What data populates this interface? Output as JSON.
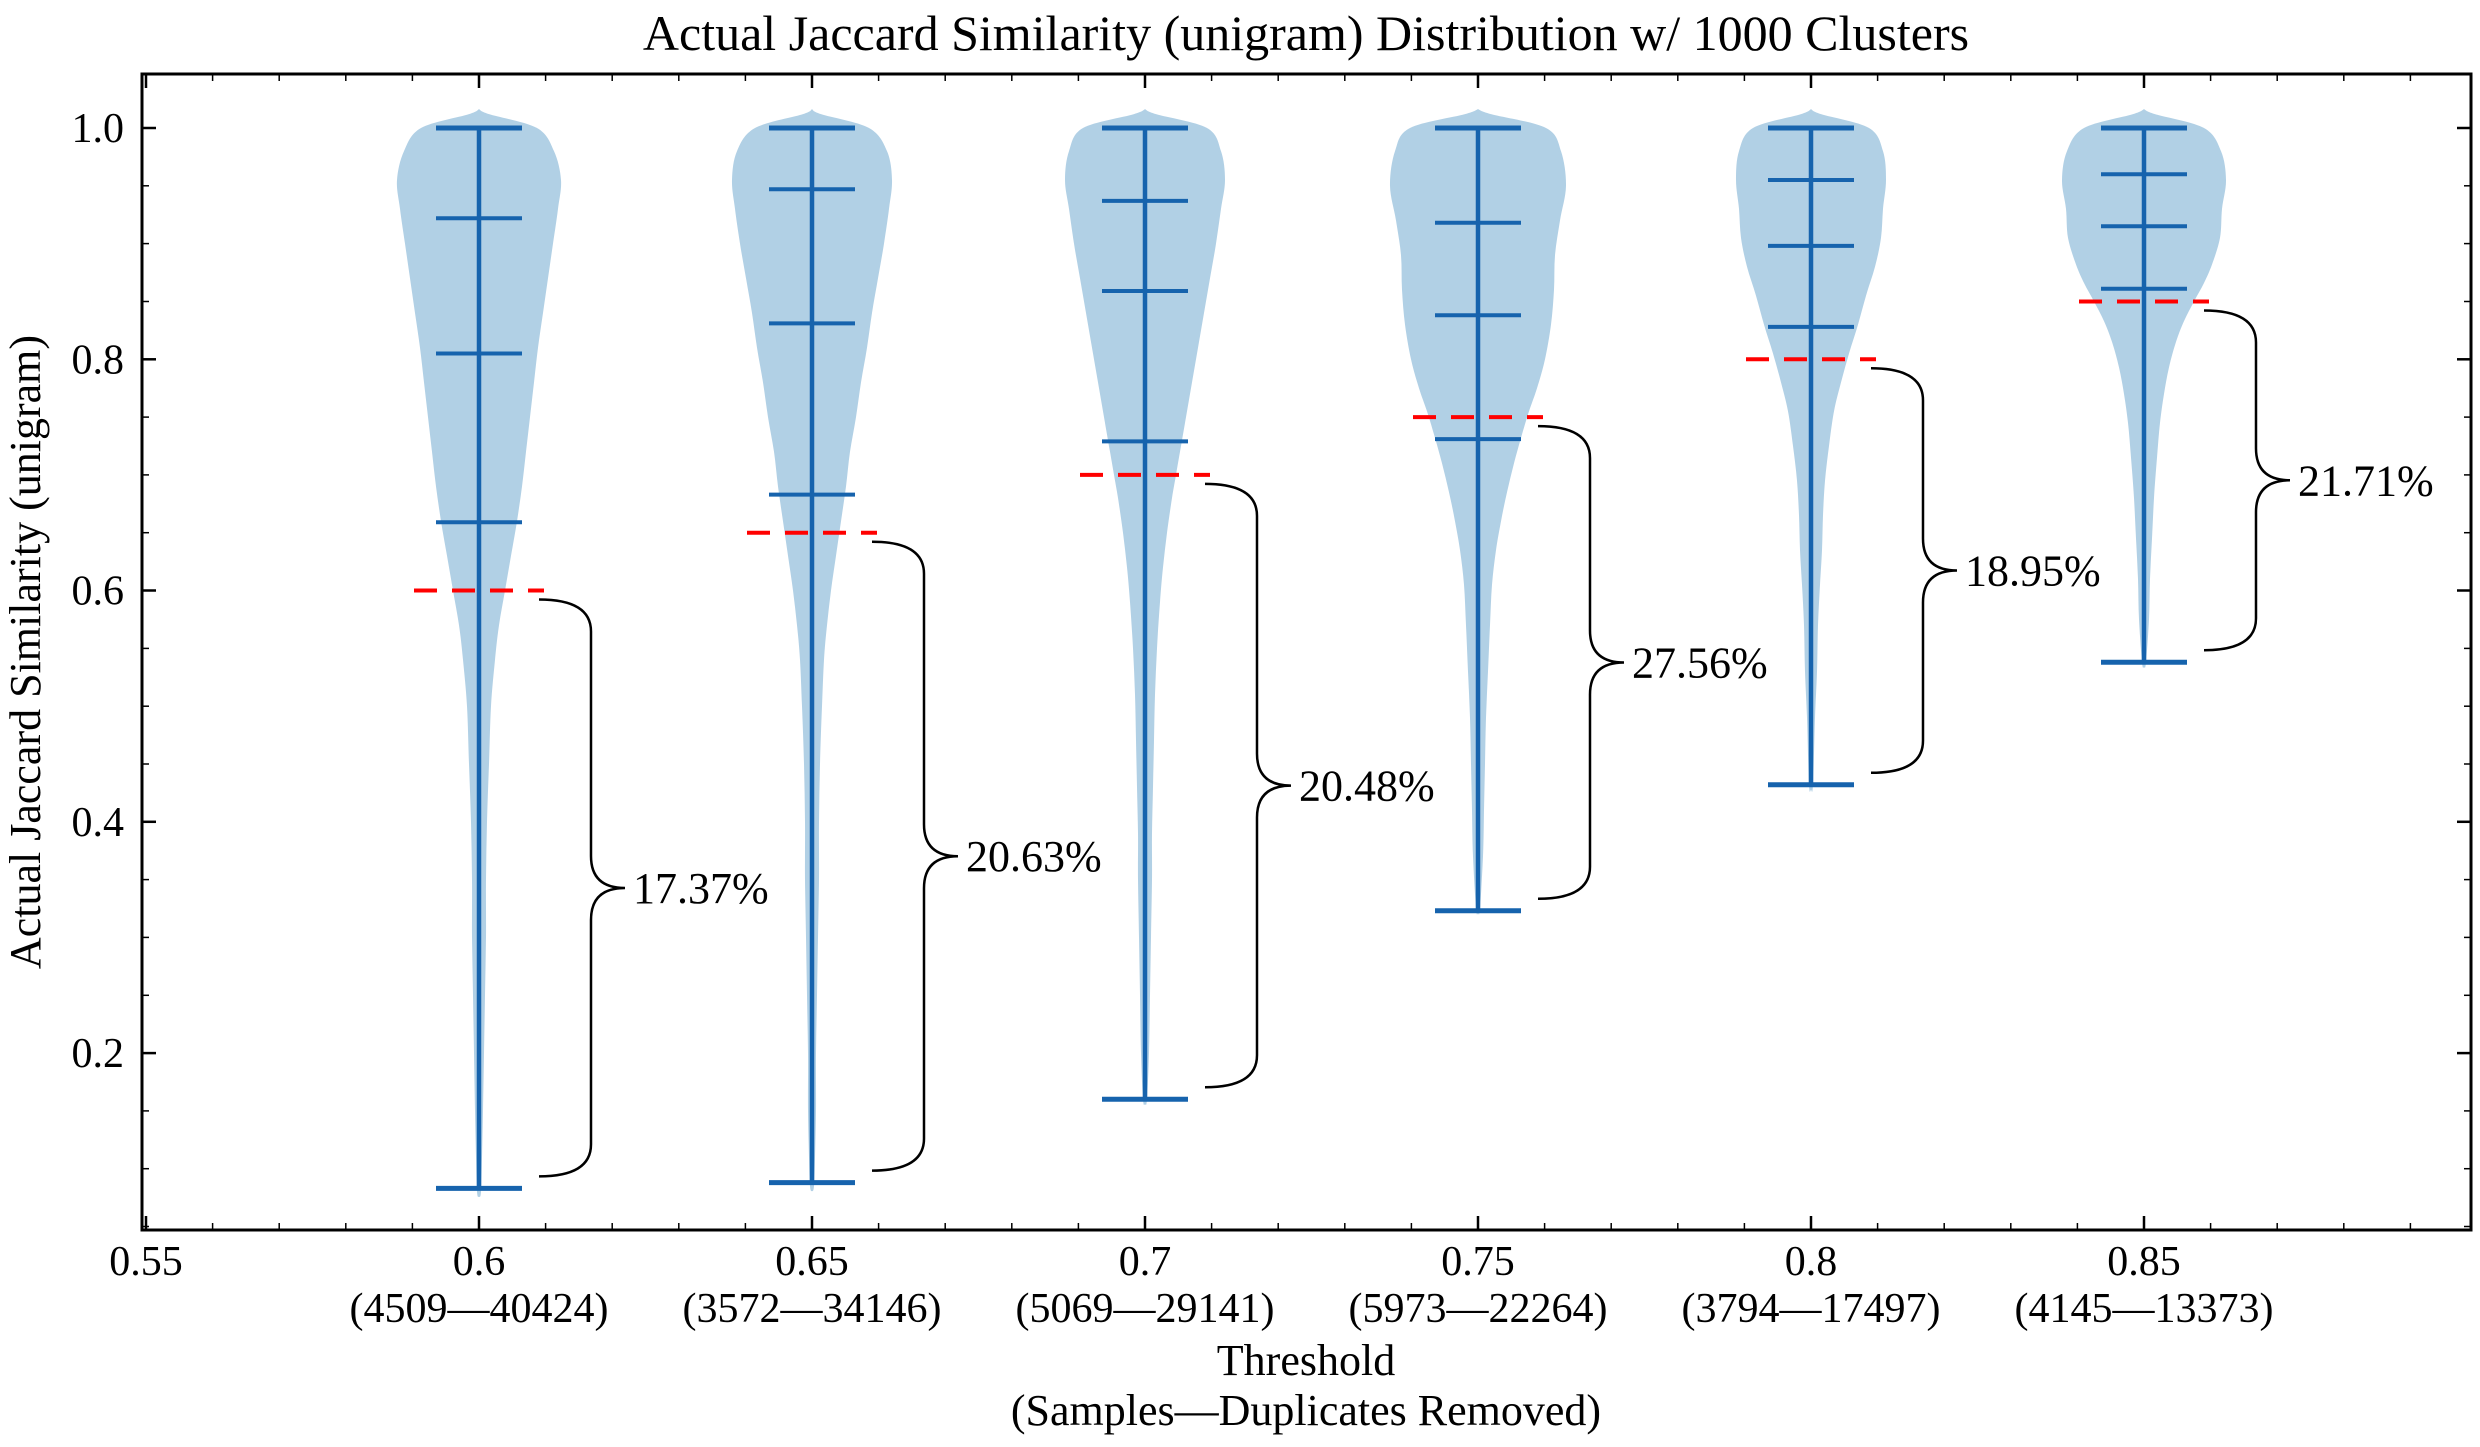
{
  "title": "Actual Jaccard Similarity (unigram) Distribution w/ 1000 Clusters",
  "chart_data": {
    "type": "violin",
    "title": "Actual Jaccard Similarity (unigram) Distribution w/ 1000 Clusters",
    "ylabel": "Actual Jaccard Similarity (unigram)",
    "xlabel_line1": "Threshold",
    "xlabel_line2": "(Samples—Duplicates Removed)",
    "xlim": [
      0.5494,
      0.8991
    ],
    "ylim": [
      0.047,
      1.0467
    ],
    "yticks": [
      0.2,
      0.4,
      0.6,
      0.8,
      1.0
    ],
    "ytick_labels": [
      "0.2",
      "0.4",
      "0.6",
      "0.8",
      "1.0"
    ],
    "ytick_minor_step": 0.05,
    "xtick_minor_step": 0.01,
    "extra_xticks": [
      {
        "value": 0.55,
        "label": "0.55",
        "samples_label": ""
      }
    ],
    "grid": false,
    "legend": null,
    "colors": {
      "violin_fill": "rgba(31,119,180,0.35)",
      "violin_line": "#1663ad",
      "threshold_line": "#ff0000",
      "axis": "#000000",
      "annotation": "#000000",
      "background": "#ffffff"
    },
    "violins": [
      {
        "x": 0.6,
        "tick_label": "0.6",
        "samples_label": "(4509—40424)",
        "samples": 4509,
        "duplicates_removed": 40424,
        "min": 0.083,
        "q1": 0.659,
        "median": 0.805,
        "q3": 0.922,
        "max": 1.0,
        "threshold": 0.6,
        "pct_label": "17.37%",
        "profile": [
          [
            1.012,
            10
          ],
          [
            1.0,
            58
          ],
          [
            0.98,
            75
          ],
          [
            0.955,
            82
          ],
          [
            0.93,
            79
          ],
          [
            0.9,
            74
          ],
          [
            0.87,
            69
          ],
          [
            0.84,
            64
          ],
          [
            0.81,
            59
          ],
          [
            0.78,
            55
          ],
          [
            0.75,
            51
          ],
          [
            0.72,
            47
          ],
          [
            0.69,
            43
          ],
          [
            0.66,
            38
          ],
          [
            0.63,
            32
          ],
          [
            0.6,
            26
          ],
          [
            0.57,
            20
          ],
          [
            0.54,
            16
          ],
          [
            0.5,
            12
          ],
          [
            0.45,
            10
          ],
          [
            0.4,
            8
          ],
          [
            0.35,
            7
          ],
          [
            0.3,
            7
          ],
          [
            0.25,
            6
          ],
          [
            0.2,
            5
          ],
          [
            0.15,
            4
          ],
          [
            0.11,
            3
          ],
          [
            0.08,
            2
          ]
        ]
      },
      {
        "x": 0.65,
        "tick_label": "0.65",
        "samples_label": "(3572—34146)",
        "samples": 3572,
        "duplicates_removed": 34146,
        "min": 0.088,
        "q1": 0.683,
        "median": 0.831,
        "q3": 0.947,
        "max": 1.0,
        "threshold": 0.65,
        "pct_label": "20.63%",
        "profile": [
          [
            1.012,
            9
          ],
          [
            1.0,
            57
          ],
          [
            0.98,
            75
          ],
          [
            0.955,
            80
          ],
          [
            0.93,
            77
          ],
          [
            0.9,
            72
          ],
          [
            0.87,
            66
          ],
          [
            0.84,
            60
          ],
          [
            0.81,
            55
          ],
          [
            0.78,
            49
          ],
          [
            0.75,
            44
          ],
          [
            0.72,
            38
          ],
          [
            0.69,
            34
          ],
          [
            0.66,
            29
          ],
          [
            0.63,
            24
          ],
          [
            0.6,
            19
          ],
          [
            0.57,
            15
          ],
          [
            0.54,
            12
          ],
          [
            0.5,
            10
          ],
          [
            0.45,
            8
          ],
          [
            0.4,
            7
          ],
          [
            0.35,
            7
          ],
          [
            0.3,
            6
          ],
          [
            0.25,
            5
          ],
          [
            0.2,
            4
          ],
          [
            0.15,
            4
          ],
          [
            0.11,
            3
          ],
          [
            0.085,
            2
          ]
        ]
      },
      {
        "x": 0.7,
        "tick_label": "0.7",
        "samples_label": "(5069—29141)",
        "samples": 5069,
        "duplicates_removed": 29141,
        "min": 0.16,
        "q1": 0.729,
        "median": 0.859,
        "q3": 0.937,
        "max": 1.0,
        "threshold": 0.7,
        "pct_label": "20.48%",
        "profile": [
          [
            1.012,
            11
          ],
          [
            1.0,
            62
          ],
          [
            0.98,
            76
          ],
          [
            0.955,
            80
          ],
          [
            0.93,
            76
          ],
          [
            0.9,
            71
          ],
          [
            0.87,
            65
          ],
          [
            0.84,
            59
          ],
          [
            0.81,
            53
          ],
          [
            0.78,
            47
          ],
          [
            0.75,
            41
          ],
          [
            0.72,
            35
          ],
          [
            0.7,
            31
          ],
          [
            0.68,
            27
          ],
          [
            0.65,
            22
          ],
          [
            0.62,
            18
          ],
          [
            0.59,
            15
          ],
          [
            0.55,
            12
          ],
          [
            0.51,
            10
          ],
          [
            0.47,
            9
          ],
          [
            0.43,
            8
          ],
          [
            0.39,
            7
          ],
          [
            0.35,
            7
          ],
          [
            0.3,
            6
          ],
          [
            0.25,
            5
          ],
          [
            0.2,
            4
          ],
          [
            0.16,
            2
          ]
        ]
      },
      {
        "x": 0.75,
        "tick_label": "0.75",
        "samples_label": "(5973—22264)",
        "samples": 5973,
        "duplicates_removed": 22264,
        "min": 0.323,
        "q1": 0.731,
        "median": 0.838,
        "q3": 0.918,
        "max": 1.0,
        "threshold": 0.75,
        "pct_label": "27.56%",
        "profile": [
          [
            1.012,
            13
          ],
          [
            1.0,
            68
          ],
          [
            0.98,
            83
          ],
          [
            0.95,
            88
          ],
          [
            0.92,
            82
          ],
          [
            0.89,
            77
          ],
          [
            0.86,
            76
          ],
          [
            0.83,
            73
          ],
          [
            0.8,
            67
          ],
          [
            0.775,
            59
          ],
          [
            0.755,
            51
          ],
          [
            0.735,
            44
          ],
          [
            0.71,
            36
          ],
          [
            0.685,
            29
          ],
          [
            0.66,
            23
          ],
          [
            0.635,
            18
          ],
          [
            0.605,
            14
          ],
          [
            0.57,
            12
          ],
          [
            0.53,
            10
          ],
          [
            0.49,
            8
          ],
          [
            0.45,
            7
          ],
          [
            0.41,
            6
          ],
          [
            0.37,
            5
          ],
          [
            0.325,
            2
          ]
        ]
      },
      {
        "x": 0.8,
        "tick_label": "0.8",
        "samples_label": "(3794—17497)",
        "samples": 3794,
        "duplicates_removed": 17497,
        "min": 0.432,
        "q1": 0.828,
        "median": 0.898,
        "q3": 0.955,
        "max": 1.0,
        "threshold": 0.8,
        "pct_label": "18.95%",
        "profile": [
          [
            1.012,
            10
          ],
          [
            1.0,
            58
          ],
          [
            0.98,
            72
          ],
          [
            0.955,
            75
          ],
          [
            0.93,
            72
          ],
          [
            0.905,
            70
          ],
          [
            0.88,
            64
          ],
          [
            0.855,
            55
          ],
          [
            0.83,
            47
          ],
          [
            0.805,
            38
          ],
          [
            0.78,
            30
          ],
          [
            0.755,
            23
          ],
          [
            0.725,
            18
          ],
          [
            0.695,
            14
          ],
          [
            0.665,
            12
          ],
          [
            0.635,
            11
          ],
          [
            0.605,
            9
          ],
          [
            0.57,
            7
          ],
          [
            0.53,
            6
          ],
          [
            0.49,
            4
          ],
          [
            0.432,
            2
          ]
        ]
      },
      {
        "x": 0.85,
        "tick_label": "0.85",
        "samples_label": "(4145—13373)",
        "samples": 4145,
        "duplicates_removed": 13373,
        "min": 0.538,
        "q1": 0.861,
        "median": 0.915,
        "q3": 0.96,
        "max": 1.0,
        "threshold": 0.85,
        "pct_label": "21.71%",
        "profile": [
          [
            1.012,
            11
          ],
          [
            1.0,
            60
          ],
          [
            0.98,
            77
          ],
          [
            0.955,
            82
          ],
          [
            0.93,
            78
          ],
          [
            0.905,
            76
          ],
          [
            0.882,
            68
          ],
          [
            0.866,
            60
          ],
          [
            0.85,
            50
          ],
          [
            0.833,
            40
          ],
          [
            0.815,
            32
          ],
          [
            0.793,
            25
          ],
          [
            0.77,
            20
          ],
          [
            0.745,
            16
          ],
          [
            0.715,
            13
          ],
          [
            0.68,
            10
          ],
          [
            0.645,
            8
          ],
          [
            0.61,
            6
          ],
          [
            0.575,
            5
          ],
          [
            0.538,
            2
          ]
        ]
      }
    ]
  }
}
